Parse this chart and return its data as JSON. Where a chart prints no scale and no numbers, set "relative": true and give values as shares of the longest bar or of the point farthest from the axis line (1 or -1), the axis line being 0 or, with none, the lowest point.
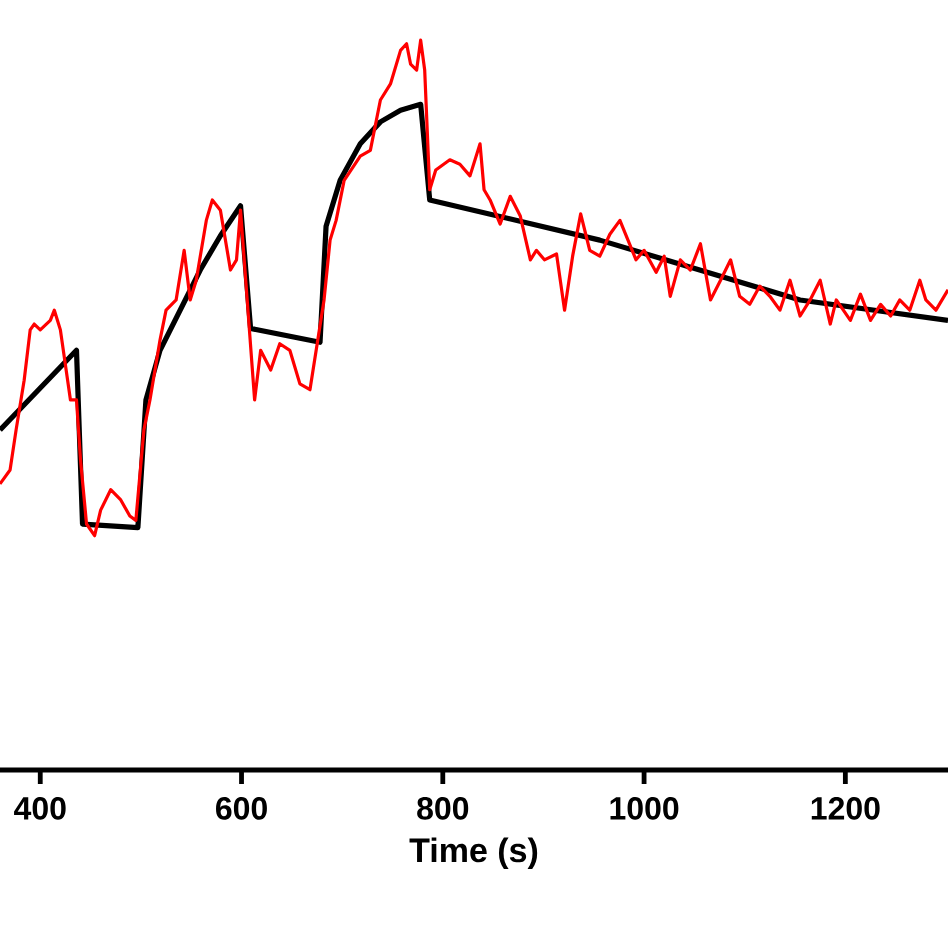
{
  "chart_data": {
    "type": "line",
    "xlabel": "Time (s)",
    "relative": true,
    "xlim": [
      360,
      1302
    ],
    "xticks": [
      400,
      600,
      800,
      1000,
      1200
    ],
    "series": [
      {
        "color": "#ff0000",
        "x": [
          360,
          370,
          376,
          384,
          390,
          394,
          400,
          410,
          414,
          420,
          430,
          436,
          440,
          446,
          454,
          460,
          470,
          480,
          489,
          495,
          503,
          509,
          519,
          525,
          535,
          543,
          549,
          555,
          565,
          571,
          579,
          589,
          595,
          599,
          613,
          619,
          629,
          638,
          648,
          658,
          668,
          682,
          688,
          694,
          702,
          718,
          728,
          738,
          748,
          758,
          764,
          768,
          774,
          778,
          782,
          787,
          793,
          807,
          817,
          827,
          837,
          841,
          847,
          857,
          867,
          877,
          887,
          893,
          901,
          913,
          921,
          929,
          937,
          946,
          956,
          966,
          976,
          992,
          1000,
          1012,
          1020,
          1026,
          1036,
          1046,
          1056,
          1066,
          1076,
          1086,
          1095,
          1105,
          1115,
          1125,
          1135,
          1145,
          1155,
          1165,
          1175,
          1185,
          1191,
          1205,
          1215,
          1225,
          1235,
          1245,
          1254,
          1264,
          1274,
          1280,
          1290,
          1302
        ],
        "values": [
          0.392,
          0.411,
          0.466,
          0.534,
          0.603,
          0.611,
          0.603,
          0.616,
          0.63,
          0.603,
          0.507,
          0.507,
          0.425,
          0.337,
          0.321,
          0.356,
          0.384,
          0.37,
          0.348,
          0.342,
          0.466,
          0.507,
          0.589,
          0.63,
          0.644,
          0.712,
          0.644,
          0.671,
          0.753,
          0.781,
          0.767,
          0.685,
          0.699,
          0.767,
          0.507,
          0.575,
          0.548,
          0.584,
          0.575,
          0.529,
          0.521,
          0.644,
          0.726,
          0.753,
          0.808,
          0.841,
          0.849,
          0.918,
          0.94,
          0.986,
          0.995,
          0.967,
          0.959,
          1.0,
          0.959,
          0.795,
          0.822,
          0.836,
          0.83,
          0.814,
          0.858,
          0.795,
          0.781,
          0.748,
          0.786,
          0.759,
          0.699,
          0.712,
          0.699,
          0.707,
          0.63,
          0.704,
          0.762,
          0.712,
          0.704,
          0.734,
          0.753,
          0.699,
          0.712,
          0.682,
          0.704,
          0.649,
          0.699,
          0.685,
          0.721,
          0.644,
          0.671,
          0.699,
          0.649,
          0.638,
          0.663,
          0.649,
          0.63,
          0.671,
          0.622,
          0.644,
          0.671,
          0.611,
          0.644,
          0.616,
          0.652,
          0.616,
          0.638,
          0.622,
          0.644,
          0.63,
          0.671,
          0.644,
          0.63,
          0.658
        ]
      },
      {
        "color": "#000000",
        "x": [
          360,
          436,
          442,
          497,
          505,
          519,
          539,
          559,
          579,
          599,
          609,
          678,
          684,
          698,
          718,
          738,
          758,
          778,
          787,
          956,
          1155,
          1302
        ],
        "values": [
          0.466,
          0.575,
          0.337,
          0.332,
          0.507,
          0.575,
          0.63,
          0.685,
          0.732,
          0.773,
          0.605,
          0.586,
          0.745,
          0.808,
          0.858,
          0.888,
          0.904,
          0.912,
          0.781,
          0.726,
          0.644,
          0.616
        ]
      }
    ]
  }
}
